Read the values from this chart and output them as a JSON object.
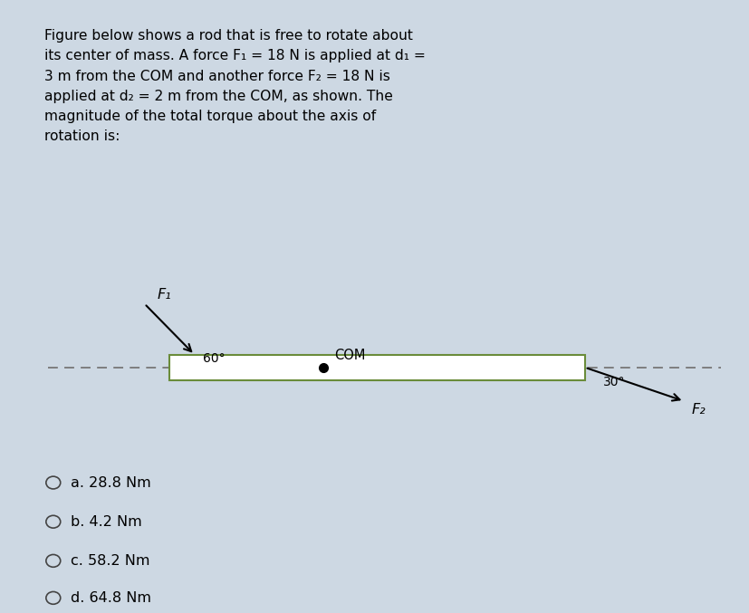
{
  "outer_bg": "#cdd8e3",
  "text_box_bg": "#dce8f0",
  "diagram_bg": "#ffffff",
  "answer_box_bg": "#dce8f0",
  "title_lines": [
    "Figure below shows a rod that is free to rotate about",
    "its center of mass. A force F₁ = 18 N is applied at d₁ =",
    "3 m from the COM and another force F₂ = 18 N is",
    "applied at d₂ = 2 m from the COM, as shown. The",
    "magnitude of the total torque about the axis of",
    "rotation is:"
  ],
  "rod_color": "#6a8c3a",
  "rod_face": "#ffffff",
  "f1_label": "F₁",
  "f2_label": "F₂",
  "com_label": "COM",
  "angle1_label": "60°",
  "angle2_label": "30°",
  "choices": [
    "a. 28.8 Nm",
    "b. 4.2 Nm",
    "c. 58.2 Nm",
    "d. 64.8 Nm"
  ],
  "font_size_title": 11.2,
  "font_size_diagram": 10.5,
  "font_size_choices": 11.5
}
